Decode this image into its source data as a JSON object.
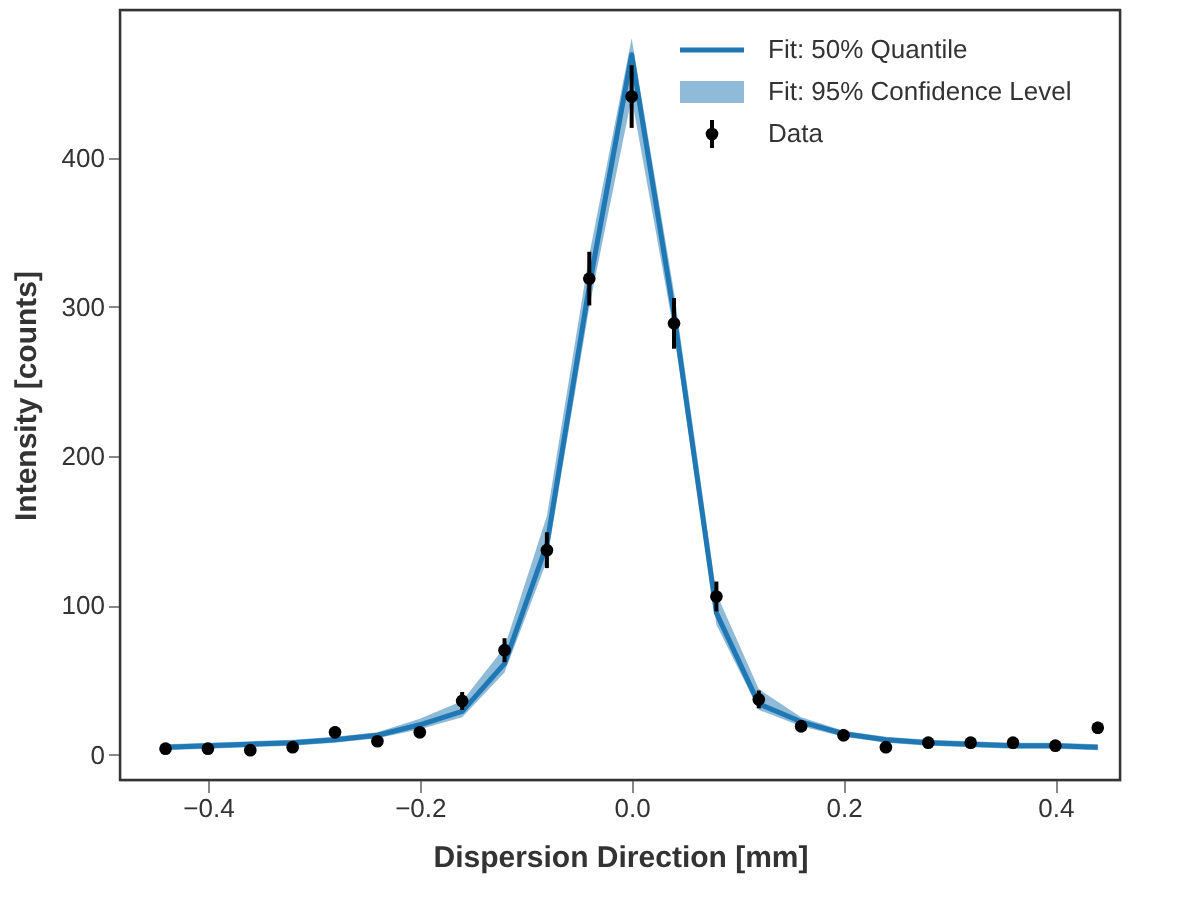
{
  "chart_data": {
    "type": "line",
    "xlabel": "Dispersion Direction [mm]",
    "ylabel": "Intensity [counts]",
    "x": [
      -0.44,
      -0.4,
      -0.36,
      -0.32,
      -0.28,
      -0.24,
      -0.2,
      -0.16,
      -0.12,
      -0.08,
      -0.04,
      0.0,
      0.04,
      0.08,
      0.12,
      0.16,
      0.2,
      0.24,
      0.28,
      0.32,
      0.36,
      0.4,
      0.44
    ],
    "series": [
      {
        "name": "Fit: 50% Quantile",
        "color": "#1f77b4",
        "values": [
          5,
          6,
          7,
          8,
          10,
          13,
          20,
          29,
          61,
          141,
          314,
          469,
          295,
          95,
          34,
          22,
          14,
          10,
          8,
          7,
          6,
          6,
          5
        ],
        "lower": [
          3,
          4,
          5,
          6,
          8,
          11,
          17,
          25,
          55,
          130,
          300,
          440,
          283,
          87,
          30,
          19,
          12,
          8,
          6,
          5,
          4,
          4,
          3
        ],
        "upper": [
          7,
          8,
          9,
          10,
          12,
          15,
          24,
          36,
          72,
          160,
          335,
          480,
          310,
          108,
          44,
          25,
          16,
          12,
          10,
          9,
          8,
          8,
          7
        ]
      },
      {
        "name": "Data",
        "type": "scatter",
        "color": "#000000",
        "marker": "circle",
        "values": [
          4,
          4,
          3,
          5,
          15,
          9,
          15,
          36,
          70,
          137,
          319,
          441,
          289,
          106,
          37,
          19,
          13,
          5,
          8,
          8,
          8,
          6,
          18
        ],
        "errors": [
          2,
          2,
          2,
          2,
          4,
          3,
          4,
          6,
          8,
          12,
          18,
          21,
          17,
          10,
          6,
          4,
          4,
          2,
          3,
          3,
          3,
          2,
          4
        ]
      }
    ],
    "xlim": [
      -0.483,
      0.461
    ],
    "xticks": [
      -0.4,
      -0.2,
      {
        "value": 0,
        "label": "0.0"
      },
      0.2,
      0.4
    ],
    "ylim": [
      -17,
      499
    ],
    "yticks": [
      0,
      100,
      200,
      300,
      400
    ],
    "annotations": [
      "Fit: 95% Confidence Level"
    ],
    "grid": false,
    "legend": "top right"
  }
}
